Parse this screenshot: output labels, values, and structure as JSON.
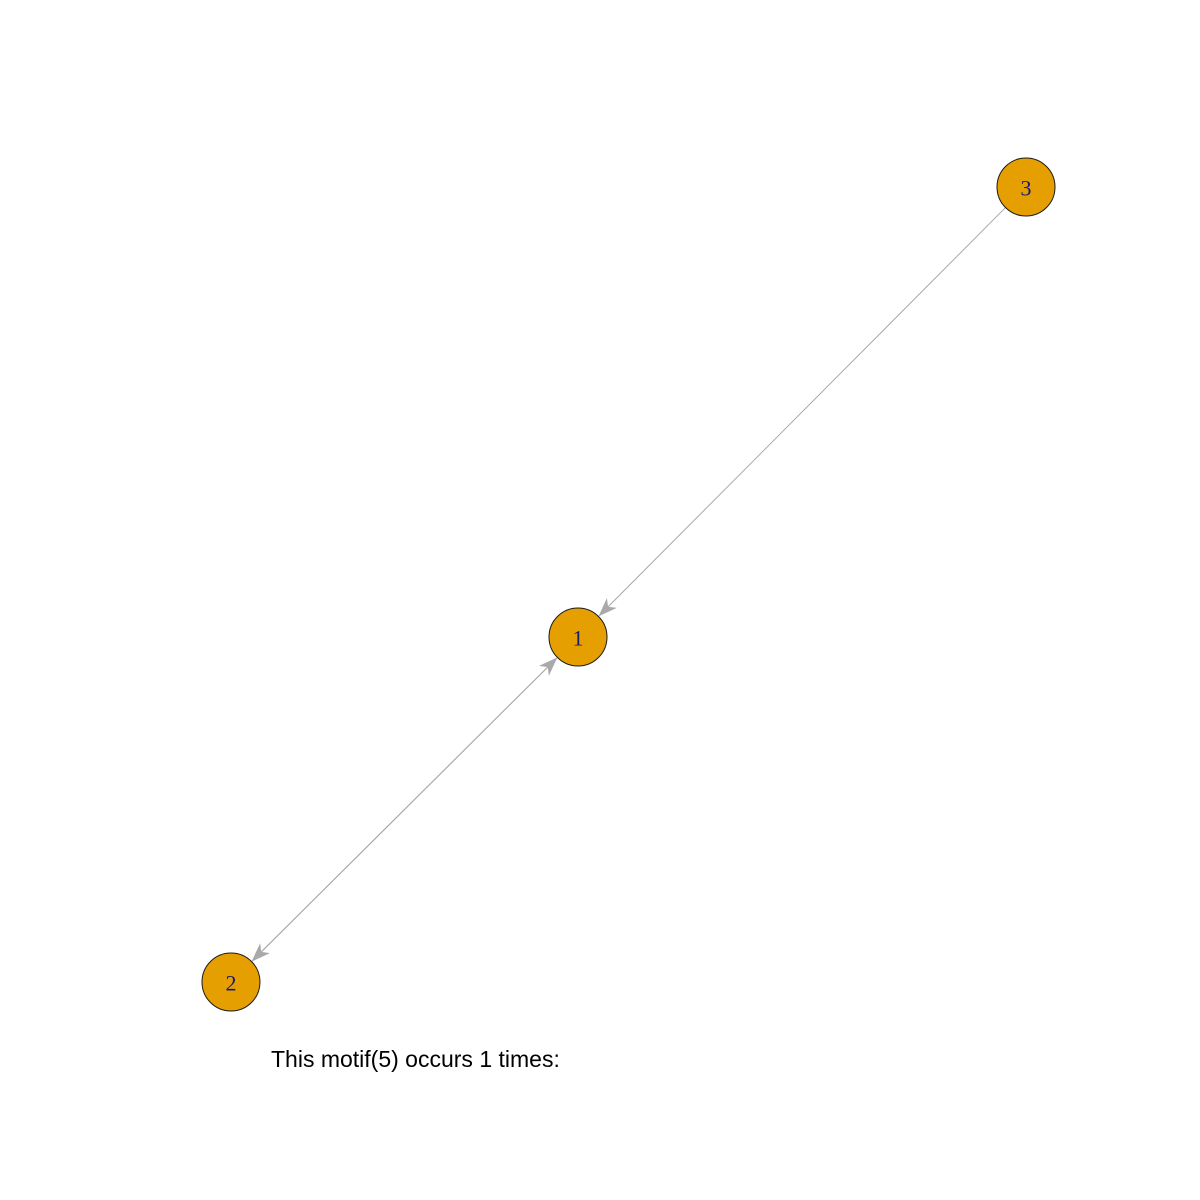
{
  "caption": "This motif(5) occurs 1 times:",
  "colors": {
    "node_fill": "#e69f00",
    "node_border": "#1a1a1a",
    "edge": "#a9a9a9",
    "label": "#1a1a6e"
  },
  "graph": {
    "directed": true,
    "nodes": [
      {
        "id": "1",
        "label": "1"
      },
      {
        "id": "2",
        "label": "2"
      },
      {
        "id": "3",
        "label": "3"
      }
    ],
    "edges": [
      {
        "from": "3",
        "to": "1"
      },
      {
        "from": "1",
        "to": "2"
      },
      {
        "from": "2",
        "to": "1"
      }
    ]
  }
}
